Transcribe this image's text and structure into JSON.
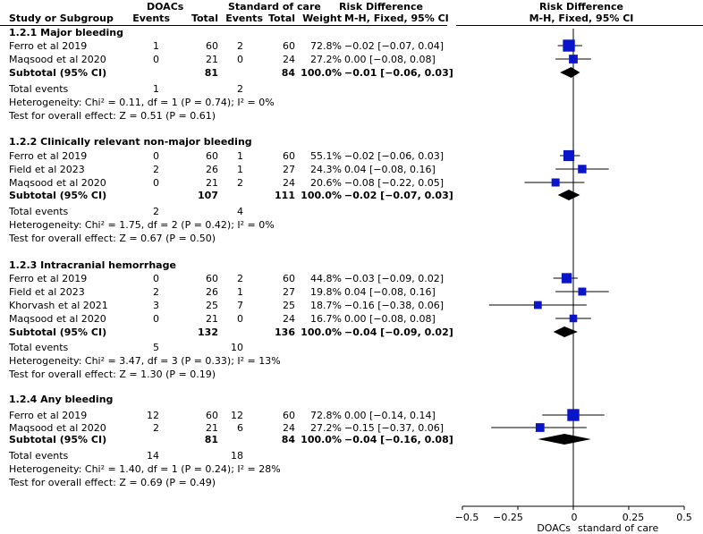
{
  "header": {
    "group1": "DOACs",
    "group2": "Standard of care",
    "col_study": "Study or Subgroup",
    "col_events1": "Events",
    "col_total1": "Total",
    "col_events2": "Events",
    "col_total2": "Total",
    "col_weight": "Weight",
    "rd_title": "Risk Difference",
    "rd_method": "M-H, Fixed, 95% CI",
    "plot_title": "Risk Difference",
    "plot_method": "M-H, Fixed, 95% CI"
  },
  "subgroups": [
    {
      "title": "1.2.1 Major bleeding",
      "studies": [
        {
          "name": "Ferro et al 2019",
          "e1": "1",
          "n1": "60",
          "e2": "2",
          "n2": "60",
          "weight": "72.8%",
          "rd": "−0.02 [−0.07, 0.04]"
        },
        {
          "name": "Maqsood et al 2020",
          "e1": "0",
          "n1": "21",
          "e2": "0",
          "n2": "24",
          "weight": "27.2%",
          "rd": "0.00 [−0.08, 0.08]"
        }
      ],
      "subtotal": {
        "label": "Subtotal (95% CI)",
        "n1": "81",
        "n2": "84",
        "weight": "100.0%",
        "rd": "−0.01 [−0.06, 0.03]"
      },
      "total_events": {
        "label": "Total events",
        "e1": "1",
        "e2": "2"
      },
      "heterogeneity": "Heterogeneity: Chi² = 0.11, df = 1 (P = 0.74); I² = 0%",
      "overall": "Test for overall effect: Z = 0.51 (P = 0.61)"
    },
    {
      "title": "1.2.2 Clinically relevant non-major bleeding",
      "studies": [
        {
          "name": "Ferro et al 2019",
          "e1": "0",
          "n1": "60",
          "e2": "1",
          "n2": "60",
          "weight": "55.1%",
          "rd": "−0.02 [−0.06, 0.03]"
        },
        {
          "name": "Field et al 2023",
          "e1": "2",
          "n1": "26",
          "e2": "1",
          "n2": "27",
          "weight": "24.3%",
          "rd": "0.04 [−0.08, 0.16]"
        },
        {
          "name": "Maqsood et al 2020",
          "e1": "0",
          "n1": "21",
          "e2": "2",
          "n2": "24",
          "weight": "20.6%",
          "rd": "−0.08 [−0.22, 0.05]"
        }
      ],
      "subtotal": {
        "label": "Subtotal (95% CI)",
        "n1": "107",
        "n2": "111",
        "weight": "100.0%",
        "rd": "−0.02 [−0.07, 0.03]"
      },
      "total_events": {
        "label": "Total events",
        "e1": "2",
        "e2": "4"
      },
      "heterogeneity": "Heterogeneity: Chi² = 1.75, df = 2 (P = 0.42); I² = 0%",
      "overall": "Test for overall effect: Z = 0.67 (P = 0.50)"
    },
    {
      "title": "1.2.3 Intracranial hemorrhage",
      "studies": [
        {
          "name": "Ferro et al 2019",
          "e1": "0",
          "n1": "60",
          "e2": "2",
          "n2": "60",
          "weight": "44.8%",
          "rd": "−0.03 [−0.09, 0.02]"
        },
        {
          "name": "Field et al 2023",
          "e1": "2",
          "n1": "26",
          "e2": "1",
          "n2": "27",
          "weight": "19.8%",
          "rd": "0.04 [−0.08, 0.16]"
        },
        {
          "name": "Khorvash et al 2021",
          "e1": "3",
          "n1": "25",
          "e2": "7",
          "n2": "25",
          "weight": "18.7%",
          "rd": "−0.16 [−0.38, 0.06]"
        },
        {
          "name": "Maqsood et al 2020",
          "e1": "0",
          "n1": "21",
          "e2": "0",
          "n2": "24",
          "weight": "16.7%",
          "rd": "0.00 [−0.08, 0.08]"
        }
      ],
      "subtotal": {
        "label": "Subtotal (95% CI)",
        "n1": "132",
        "n2": "136",
        "weight": "100.0%",
        "rd": "−0.04 [−0.09, 0.02]"
      },
      "total_events": {
        "label": "Total events",
        "e1": "5",
        "e2": "10"
      },
      "heterogeneity": "Heterogeneity: Chi² = 3.47, df = 3 (P = 0.33); I² = 13%",
      "overall": "Test for overall effect: Z = 1.30 (P = 0.19)"
    },
    {
      "title": "1.2.4 Any bleeding",
      "studies": [
        {
          "name": "Ferro et al 2019",
          "e1": "12",
          "n1": "60",
          "e2": "12",
          "n2": "60",
          "weight": "72.8%",
          "rd": "0.00 [−0.14, 0.14]"
        },
        {
          "name": "Maqsood et al 2020",
          "e1": "2",
          "n1": "21",
          "e2": "6",
          "n2": "24",
          "weight": "27.2%",
          "rd": "−0.15 [−0.37, 0.06]"
        }
      ],
      "subtotal": {
        "label": "Subtotal (95% CI)",
        "n1": "81",
        "n2": "84",
        "weight": "100.0%",
        "rd": "−0.04 [−0.16, 0.08]"
      },
      "total_events": {
        "label": "Total events",
        "e1": "14",
        "e2": "18"
      },
      "heterogeneity": "Heterogeneity: Chi² = 1.40, df = 1 (P = 0.24); I² = 28%",
      "overall": "Test for overall effect: Z = 0.69 (P = 0.49)"
    }
  ],
  "chart_data": {
    "type": "forest",
    "title": "Risk Difference",
    "subtitle": "M-H, Fixed, 95% CI",
    "xlim": [
      -0.5,
      0.5
    ],
    "ticks": [
      -0.5,
      -0.25,
      0,
      0.25,
      0.5
    ],
    "tick_labels": [
      "−0.5",
      "−0.25",
      "0",
      "0.25",
      "0.5"
    ],
    "favours_left": "DOACs",
    "favours_right": "standard of care",
    "subgroups": [
      {
        "studies": [
          {
            "est": -0.02,
            "lo": -0.07,
            "hi": 0.04,
            "weight": 72.8
          },
          {
            "est": 0.0,
            "lo": -0.08,
            "hi": 0.08,
            "weight": 27.2
          }
        ],
        "pooled": {
          "est": -0.01,
          "lo": -0.06,
          "hi": 0.03
        }
      },
      {
        "studies": [
          {
            "est": -0.02,
            "lo": -0.06,
            "hi": 0.03,
            "weight": 55.1
          },
          {
            "est": 0.04,
            "lo": -0.08,
            "hi": 0.16,
            "weight": 24.3
          },
          {
            "est": -0.08,
            "lo": -0.22,
            "hi": 0.05,
            "weight": 20.6
          }
        ],
        "pooled": {
          "est": -0.02,
          "lo": -0.07,
          "hi": 0.03
        }
      },
      {
        "studies": [
          {
            "est": -0.03,
            "lo": -0.09,
            "hi": 0.02,
            "weight": 44.8
          },
          {
            "est": 0.04,
            "lo": -0.08,
            "hi": 0.16,
            "weight": 19.8
          },
          {
            "est": -0.16,
            "lo": -0.38,
            "hi": 0.06,
            "weight": 18.7
          },
          {
            "est": 0.0,
            "lo": -0.08,
            "hi": 0.08,
            "weight": 16.7
          }
        ],
        "pooled": {
          "est": -0.04,
          "lo": -0.09,
          "hi": 0.02
        }
      },
      {
        "studies": [
          {
            "est": 0.0,
            "lo": -0.14,
            "hi": 0.14,
            "weight": 72.8
          },
          {
            "est": -0.15,
            "lo": -0.37,
            "hi": 0.06,
            "weight": 27.2
          }
        ],
        "pooled": {
          "est": -0.04,
          "lo": -0.16,
          "hi": 0.08
        }
      }
    ]
  }
}
